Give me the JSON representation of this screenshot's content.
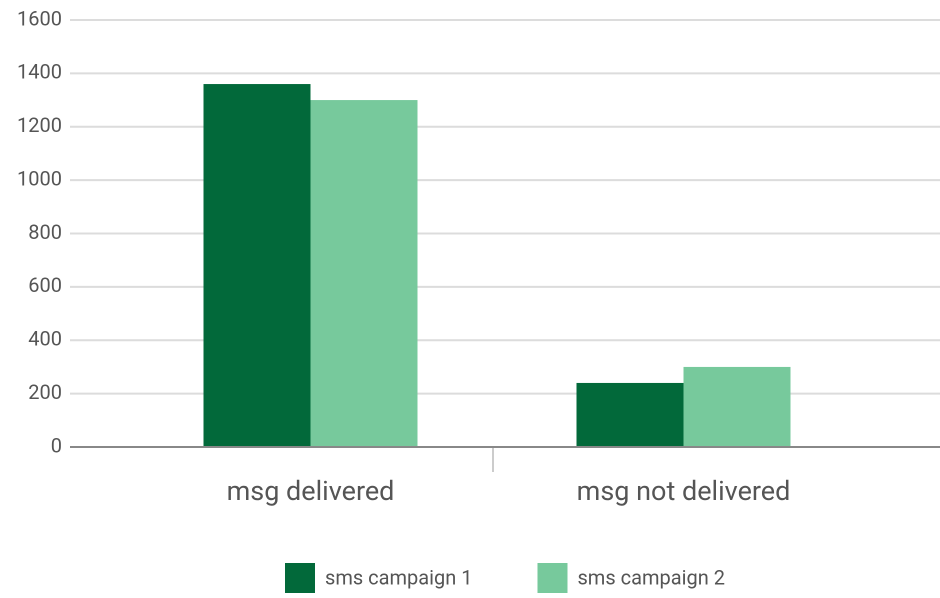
{
  "chart_data": {
    "type": "bar",
    "categories": [
      "msg delivered",
      "msg not delivered"
    ],
    "series": [
      {
        "name": "sms campaign 1",
        "color": "#02693a",
        "values": [
          1360,
          240
        ]
      },
      {
        "name": "sms campaign 2",
        "color": "#77c99c",
        "values": [
          1300,
          300
        ]
      }
    ],
    "ylim": [
      0,
      1600
    ],
    "yticks": [
      0,
      200,
      400,
      600,
      800,
      1000,
      1200,
      1400,
      1600
    ],
    "grid": true,
    "legend": "bottom"
  }
}
